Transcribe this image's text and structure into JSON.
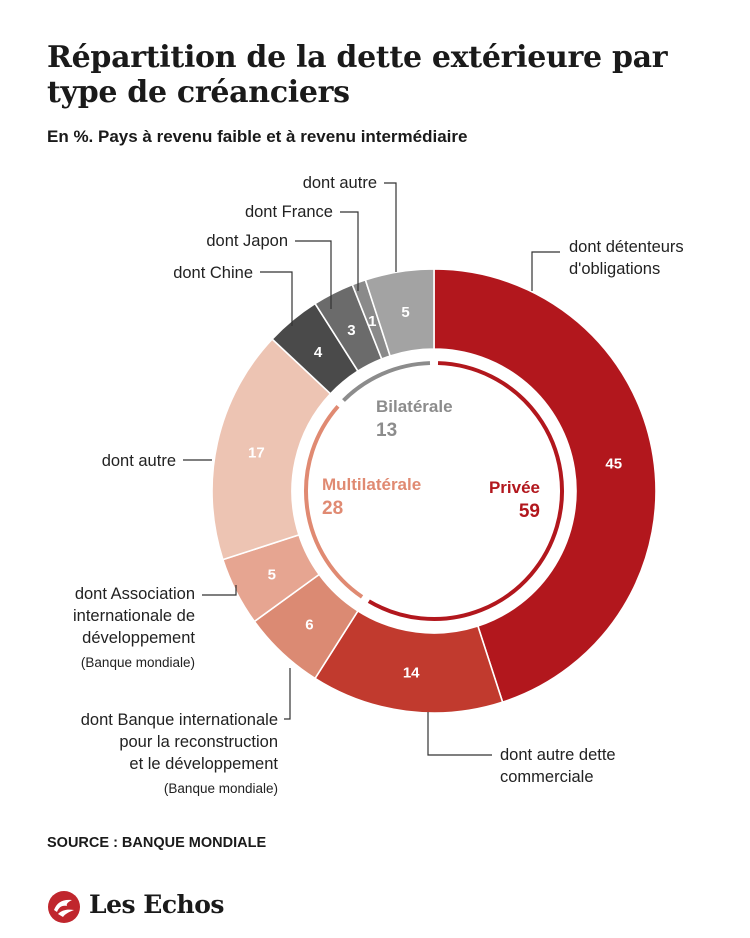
{
  "title": "Répartition de la dette extérieure par type de créanciers",
  "subtitle": "En %. Pays à revenu faible et à revenu intermédiaire",
  "source": "SOURCE : BANQUE MONDIALE",
  "brand": "Les Echos",
  "colors": {
    "privee": "#b2171d",
    "multilaterale": "#e08a72",
    "bilaterale": "#8c8c8c"
  },
  "chart_data": {
    "type": "pie",
    "style": "donut",
    "groups": [
      {
        "name": "Privée",
        "value": 59,
        "color": "#b2171d"
      },
      {
        "name": "Multilatérale",
        "value": 28,
        "color": "#e08a72"
      },
      {
        "name": "Bilatérale",
        "value": 13,
        "color": "#8c8c8c"
      }
    ],
    "slices": [
      {
        "label": "dont détenteurs d'obligations",
        "value": 45,
        "group": "Privée",
        "color": "#b2171d"
      },
      {
        "label": "dont autre dette commerciale",
        "value": 14,
        "group": "Privée",
        "color": "#c13a2e"
      },
      {
        "label": "dont Banque internationale pour la reconstruction et le développement",
        "note": "(Banque mondiale)",
        "value": 6,
        "group": "Multilatérale",
        "color": "#db8a73"
      },
      {
        "label": "dont Association internationale de développement",
        "note": "(Banque mondiale)",
        "value": 5,
        "group": "Multilatérale",
        "color": "#e6a591"
      },
      {
        "label": "dont autre",
        "value": 17,
        "group": "Multilatérale",
        "color": "#edc4b3"
      },
      {
        "label": "dont Chine",
        "value": 4,
        "group": "Bilatérale",
        "color": "#4a4a4a"
      },
      {
        "label": "dont Japon",
        "value": 3,
        "group": "Bilatérale",
        "color": "#6b6b6b"
      },
      {
        "label": "dont France",
        "value": 1,
        "group": "Bilatérale",
        "color": "#8a8a8a"
      },
      {
        "label": "dont autre",
        "value": 5,
        "group": "Bilatérale",
        "color": "#a3a3a3"
      }
    ]
  }
}
